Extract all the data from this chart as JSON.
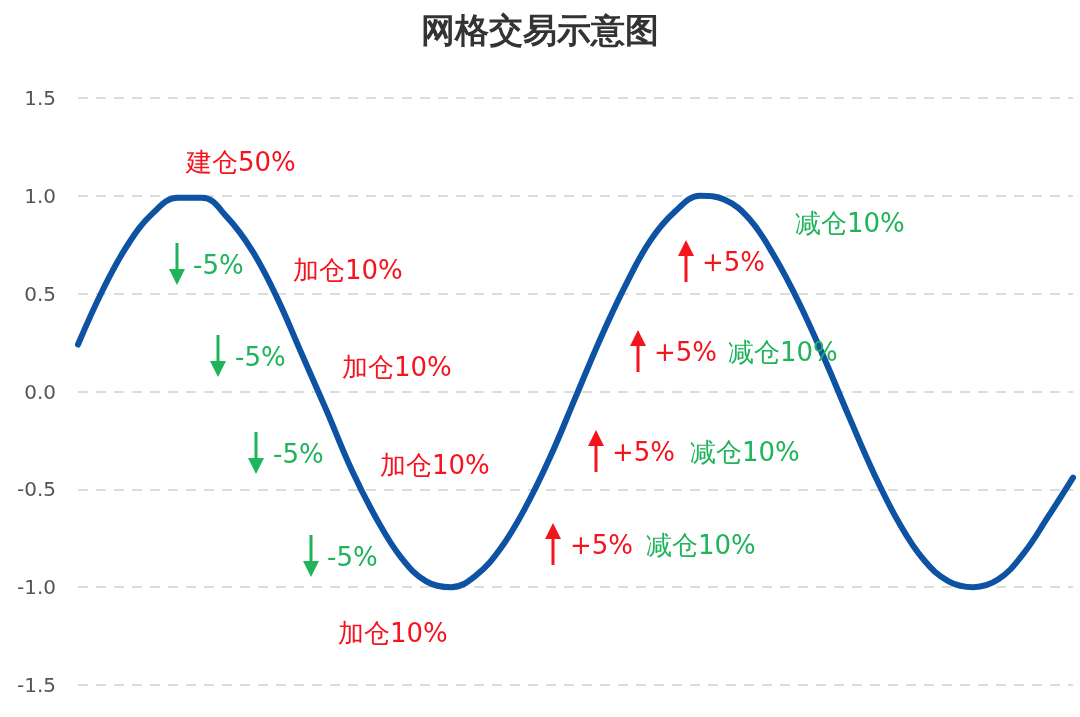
{
  "chart_data": {
    "type": "line",
    "title": "网格交易示意图",
    "categories": [
      null,
      null,
      null,
      null,
      null,
      null,
      null,
      null,
      null,
      null,
      null,
      null,
      null,
      null,
      null,
      null,
      null,
      null,
      null,
      null,
      null,
      null,
      null,
      null,
      null,
      null,
      null,
      null,
      null,
      null,
      null,
      null,
      null,
      null,
      null,
      null,
      null,
      null,
      null,
      null,
      null
    ],
    "series": [
      {
        "color": "#0d52a3",
        "values": [
          0.24,
          0.52,
          0.75,
          0.91,
          0.99,
          0.99,
          0.89,
          0.72,
          0.48,
          0.19,
          -0.1,
          -0.4,
          -0.65,
          -0.85,
          -0.97,
          -1.0,
          -0.94,
          -0.8,
          -0.59,
          -0.33,
          -0.03,
          0.27,
          0.54,
          0.77,
          0.92,
          1.0,
          0.98,
          0.88,
          0.69,
          0.45,
          0.17,
          -0.13,
          -0.42,
          -0.67,
          -0.86,
          -0.97,
          -1.0,
          -0.96,
          -0.83,
          -0.64,
          -0.44
        ]
      }
    ],
    "ylim": [
      -1.5,
      1.5
    ],
    "yticks": [
      -1.5,
      {
        "value": -1,
        "label": "-1.0"
      },
      -0.5,
      {
        "value": 0,
        "label": "0.0"
      },
      0.5,
      {
        "value": 1,
        "label": "1.0"
      },
      1.5
    ],
    "tick_labels": "y",
    "grid": "y",
    "marker": "none",
    "line_style": "solid",
    "annotations": [
      "建仓50%",
      "加仓10%",
      "加仓10%",
      "加仓10%",
      "加仓10%",
      "-5%",
      "-5%",
      "-5%",
      "-5%",
      "减仓10%",
      "+5%",
      "减仓10%",
      "+5%",
      "+5%",
      "减仓10%",
      "+5%",
      "减仓10%"
    ]
  }
}
